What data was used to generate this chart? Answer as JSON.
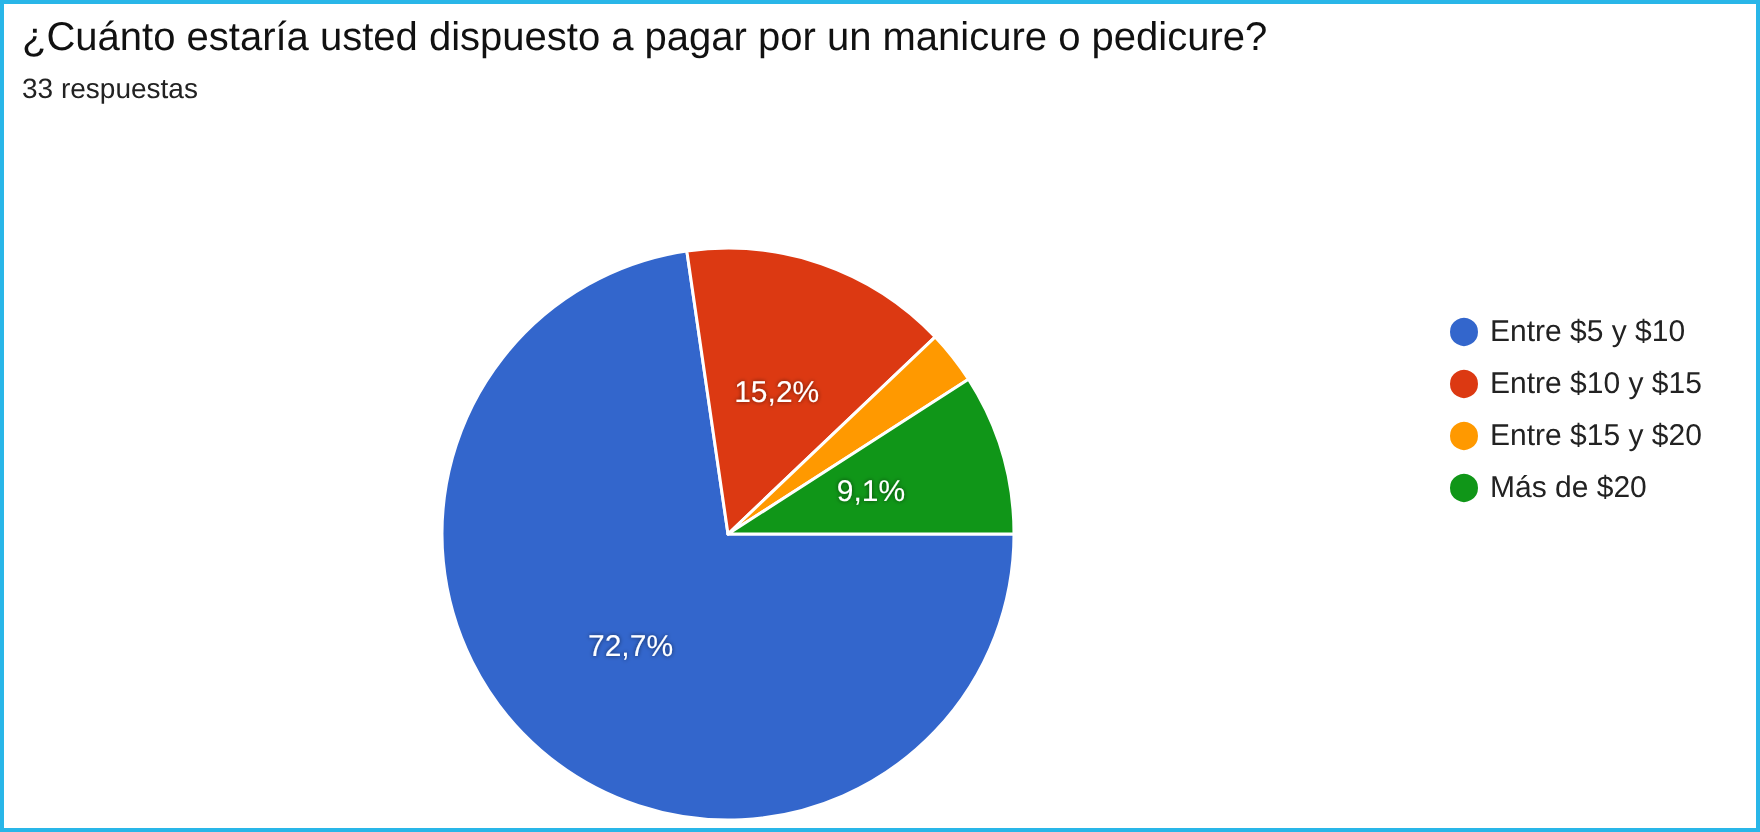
{
  "chart_data": {
    "type": "pie",
    "title": "¿Cuánto estaría usted dispuesto a pagar por un manicure o pedicure?",
    "subtitle": "33 respuestas",
    "categories": [
      "Entre $5 y $10",
      "Entre $10 y $15",
      "Entre $15 y $20",
      "Más de $20"
    ],
    "values": [
      72.7,
      15.2,
      3.0,
      9.1
    ],
    "colors": [
      "#3366cc",
      "#dc3912",
      "#ff9900",
      "#109618"
    ],
    "value_labels": [
      "72,7%",
      "15,2%",
      null,
      "9,1%"
    ],
    "legend": "right"
  }
}
